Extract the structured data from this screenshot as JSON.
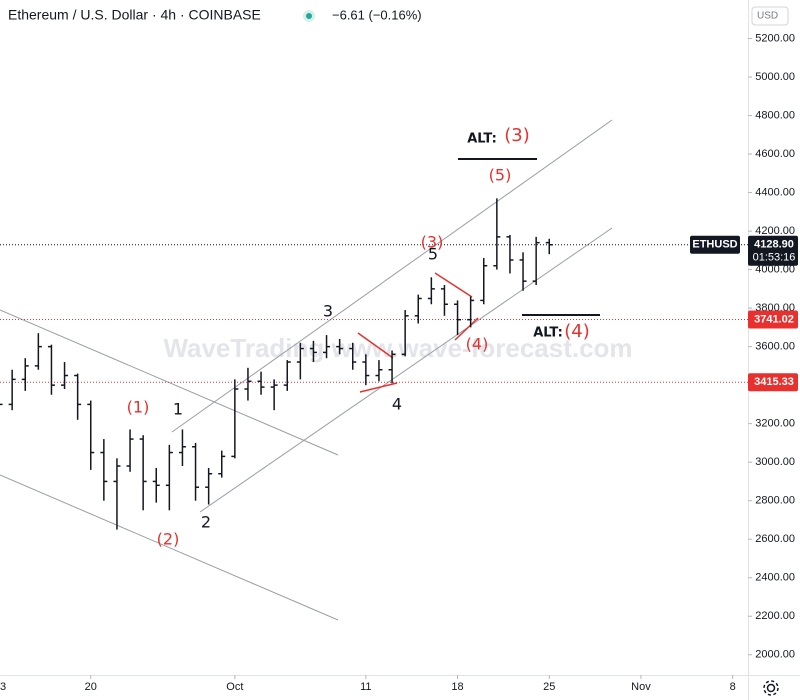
{
  "chart_data": {
    "type": "ohlc",
    "title": "Ethereum / U.S. Dollar · 4h · COINBASE",
    "change": "−6.61 (−0.16%)",
    "currency": "USD",
    "watermark": "WaveTrading   www.wave-forecast.com",
    "color": "#131722",
    "categories": [
      "3",
      null,
      null,
      null,
      null,
      null,
      null,
      "20",
      null,
      null,
      null,
      null,
      null,
      null,
      null,
      null,
      null,
      null,
      "Oct",
      null,
      null,
      null,
      null,
      null,
      null,
      null,
      null,
      null,
      "11",
      null,
      null,
      null,
      null,
      null,
      null,
      "18",
      null,
      null,
      null,
      null,
      null,
      null,
      "25",
      null,
      null,
      null,
      null,
      null,
      null,
      "Nov",
      null,
      null,
      null,
      null,
      null,
      null,
      "8"
    ],
    "open": [
      3400,
      3300,
      3430,
      3500,
      3600,
      3400,
      3450,
      3300,
      3050,
      2900,
      2980,
      3120,
      2900,
      2880,
      3050,
      3080,
      2870,
      2940,
      3030,
      3380,
      3420,
      3390,
      3400,
      3520,
      3590,
      3570,
      3600,
      3590,
      3520,
      3450,
      3480,
      3560,
      3760,
      3850,
      3900,
      3820,
      3740,
      3840,
      4020,
      4170,
      4050,
      3940,
      4140,
      null,
      null,
      null,
      null,
      null,
      null,
      null,
      null,
      null,
      null,
      null,
      null,
      null,
      null
    ],
    "high": [
      3460,
      3480,
      3540,
      3670,
      3610,
      3520,
      3460,
      3320,
      3120,
      3020,
      3170,
      3140,
      2970,
      3090,
      3170,
      3100,
      2970,
      3060,
      3430,
      3490,
      3470,
      3430,
      3530,
      3620,
      3630,
      3660,
      3640,
      3620,
      3560,
      3530,
      3580,
      3790,
      3870,
      3960,
      3920,
      3840,
      3860,
      4060,
      4370,
      4180,
      4090,
      4170,
      4160,
      null,
      null,
      null,
      null,
      null,
      null,
      null,
      null,
      null,
      null,
      null,
      null,
      null,
      null
    ],
    "low": [
      3240,
      3270,
      3370,
      3480,
      3350,
      3380,
      3220,
      2960,
      2800,
      2650,
      2950,
      2750,
      2790,
      2750,
      2980,
      2800,
      2780,
      2920,
      3020,
      3320,
      3350,
      3270,
      3370,
      3430,
      3520,
      3540,
      3560,
      3480,
      3400,
      3420,
      3410,
      3550,
      3720,
      3820,
      3760,
      3660,
      3700,
      3820,
      4000,
      3980,
      3890,
      3920,
      4080,
      null,
      null,
      null,
      null,
      null,
      null,
      null,
      null,
      null,
      null,
      null,
      null,
      null,
      null
    ],
    "close": [
      3300,
      3430,
      3500,
      3600,
      3400,
      3450,
      3300,
      3050,
      2900,
      2980,
      3120,
      2900,
      2880,
      3050,
      3080,
      2870,
      2940,
      3030,
      3380,
      3420,
      3390,
      3400,
      3520,
      3590,
      3570,
      3600,
      3590,
      3520,
      3450,
      3480,
      3560,
      3760,
      3850,
      3900,
      3820,
      3740,
      3840,
      4020,
      4170,
      4050,
      3940,
      4140,
      4128.9,
      null,
      null,
      null,
      null,
      null,
      null,
      null,
      null,
      null,
      null,
      null,
      null,
      null,
      null
    ],
    "ylim": [
      1900,
      5400
    ],
    "yticks": [
      {
        "value": 2000,
        "label": "2000.00"
      },
      {
        "value": 2200,
        "label": "2200.00"
      },
      {
        "value": 2400,
        "label": "2400.00"
      },
      {
        "value": 2600,
        "label": "2600.00"
      },
      {
        "value": 2800,
        "label": "2800.00"
      },
      {
        "value": 3000,
        "label": "3000.00"
      },
      {
        "value": 3200,
        "label": "3200.00"
      },
      {
        "value": 3400,
        "label": "3400.00"
      },
      {
        "value": 3600,
        "label": "3600.00"
      },
      {
        "value": 3800,
        "label": "3800.00"
      },
      {
        "value": 4000,
        "label": "4000.00"
      },
      {
        "value": 4200,
        "label": "4200.00"
      },
      {
        "value": 4400,
        "label": "4400.00"
      },
      {
        "value": 4600,
        "label": "4600.00"
      },
      {
        "value": 4800,
        "label": "4800.00"
      },
      {
        "value": 5000,
        "label": "5000.00"
      },
      {
        "value": 5200,
        "label": "5200.00"
      }
    ],
    "price_lines": [
      {
        "value": 4128.9,
        "label": "4128.90",
        "symbol": "ETHUSD",
        "countdown": "01:53:16",
        "color": "#131722"
      },
      {
        "value": 3741.02,
        "label": "3741.02",
        "color": "#e8312f"
      },
      {
        "value": 3415.33,
        "label": "3415.33",
        "color": "#e8312f"
      }
    ],
    "annotations": [
      {
        "text": "(1)",
        "color": "#e8312f"
      },
      {
        "text": "1",
        "color": "#131722"
      },
      {
        "text": "(2)",
        "color": "#e8312f"
      },
      {
        "text": "2",
        "color": "#131722"
      },
      {
        "text": "3",
        "color": "#131722"
      },
      {
        "text": "(3)",
        "color": "#e8312f"
      },
      {
        "text": "4",
        "color": "#131722"
      },
      {
        "text": "(4)",
        "color": "#e8312f"
      },
      {
        "text": "5",
        "color": "#131722"
      },
      {
        "text": "(5)",
        "color": "#e8312f"
      },
      {
        "text": "ALT:",
        "color": "#131722"
      },
      {
        "text": "(3)",
        "color": "#e8312f"
      },
      {
        "text": "ALT:",
        "color": "#131722"
      },
      {
        "text": "(4)",
        "color": "#e8312f"
      }
    ]
  }
}
